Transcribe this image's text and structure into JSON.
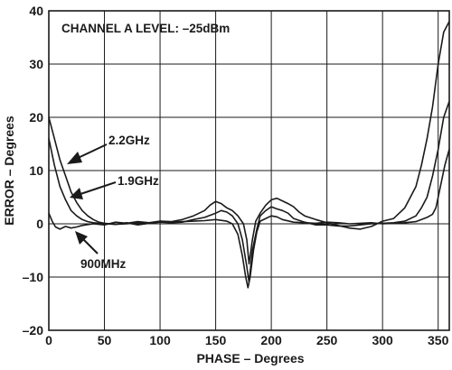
{
  "chart_data": {
    "type": "line",
    "title": "",
    "xlabel": "PHASE – Degrees",
    "ylabel": "ERROR – Degrees",
    "xlim": [
      0,
      360
    ],
    "ylim": [
      -20,
      40
    ],
    "xticks": [
      0,
      50,
      100,
      150,
      200,
      250,
      300,
      350
    ],
    "yticks": [
      -20,
      -10,
      0,
      10,
      20,
      30,
      40
    ],
    "grid": true,
    "legend": "none",
    "annotations": [
      {
        "text": "CHANNEL A LEVEL: –25dBm"
      },
      {
        "text": "2.2GHz",
        "target_series": "2.2GHz"
      },
      {
        "text": "1.9GHz",
        "target_series": "1.9GHz"
      },
      {
        "text": "900MHz",
        "target_series": "900MHz"
      }
    ],
    "series": [
      {
        "name": "2.2GHz",
        "color": "#1a1a1a",
        "x": [
          0,
          5,
          10,
          15,
          20,
          25,
          30,
          35,
          40,
          45,
          50,
          60,
          70,
          80,
          90,
          100,
          110,
          120,
          130,
          140,
          145,
          150,
          155,
          160,
          165,
          170,
          175,
          178,
          180,
          183,
          186,
          190,
          195,
          200,
          205,
          210,
          215,
          220,
          225,
          230,
          240,
          250,
          260,
          270,
          280,
          290,
          300,
          310,
          320,
          330,
          335,
          340,
          345,
          350,
          355,
          360
        ],
        "y": [
          20,
          16,
          12,
          9,
          6,
          4,
          2.5,
          1.5,
          0.8,
          0.3,
          0.1,
          -0.1,
          0.2,
          -0.2,
          0.1,
          0.5,
          0.4,
          0.8,
          1.5,
          2.5,
          3.5,
          4.2,
          3.8,
          3.0,
          2.5,
          1.5,
          0,
          -3,
          -7.5,
          -3,
          0.5,
          2.0,
          3.5,
          4.5,
          4.8,
          4.3,
          3.8,
          3.2,
          2.2,
          1.5,
          0.8,
          0.2,
          -0.3,
          -0.8,
          -1.0,
          -0.5,
          0.5,
          1.0,
          3,
          7,
          11,
          16,
          22,
          30,
          36,
          38
        ]
      },
      {
        "name": "1.9GHz",
        "color": "#1a1a1a",
        "x": [
          0,
          5,
          10,
          15,
          20,
          25,
          30,
          35,
          40,
          45,
          50,
          60,
          70,
          80,
          90,
          100,
          110,
          120,
          130,
          140,
          150,
          155,
          160,
          165,
          170,
          174,
          178,
          180,
          183,
          187,
          190,
          195,
          200,
          205,
          210,
          215,
          220,
          230,
          240,
          250,
          260,
          270,
          280,
          290,
          300,
          310,
          320,
          330,
          335,
          340,
          345,
          350,
          355,
          360
        ],
        "y": [
          16,
          11,
          7,
          4.5,
          2.5,
          1.5,
          0.8,
          0.4,
          0.2,
          0.1,
          0,
          -0.1,
          0,
          0.2,
          0.1,
          0.3,
          0.2,
          0.3,
          0.8,
          1.2,
          2.0,
          2.5,
          2.2,
          1.5,
          0,
          -3,
          -8,
          -11,
          -5,
          -1,
          1.5,
          2.5,
          3.2,
          2.8,
          2.5,
          2.0,
          1.0,
          0.3,
          -0.2,
          -0.2,
          -0.4,
          -0.4,
          -0.2,
          0,
          0.1,
          0.2,
          0.5,
          1.5,
          3,
          5,
          9,
          14,
          20,
          23
        ]
      },
      {
        "name": "900MHz",
        "color": "#1a1a1a",
        "x": [
          0,
          3,
          6,
          10,
          15,
          20,
          25,
          30,
          40,
          50,
          60,
          70,
          80,
          90,
          100,
          110,
          120,
          130,
          140,
          150,
          160,
          165,
          170,
          174,
          177,
          179,
          181,
          184,
          187,
          190,
          195,
          200,
          205,
          210,
          220,
          230,
          240,
          250,
          260,
          270,
          280,
          290,
          300,
          310,
          320,
          330,
          335,
          340,
          345,
          348,
          350,
          353,
          356,
          360
        ],
        "y": [
          2,
          0.5,
          -0.6,
          -1,
          -0.5,
          -0.8,
          -0.6,
          -0.3,
          0,
          -0.2,
          0.3,
          0.1,
          0.4,
          0.2,
          0.5,
          0.3,
          0.4,
          0.5,
          0.6,
          0.8,
          0.5,
          0,
          -2,
          -6,
          -10,
          -12,
          -10,
          -5,
          -1.5,
          0.5,
          1.0,
          1.5,
          1.3,
          0.8,
          0.3,
          0.2,
          0.1,
          0.3,
          0.2,
          0,
          0.1,
          0.2,
          0,
          0.1,
          0.2,
          0.4,
          0.8,
          1.2,
          1.8,
          3,
          5,
          8,
          11,
          14
        ]
      }
    ]
  }
}
